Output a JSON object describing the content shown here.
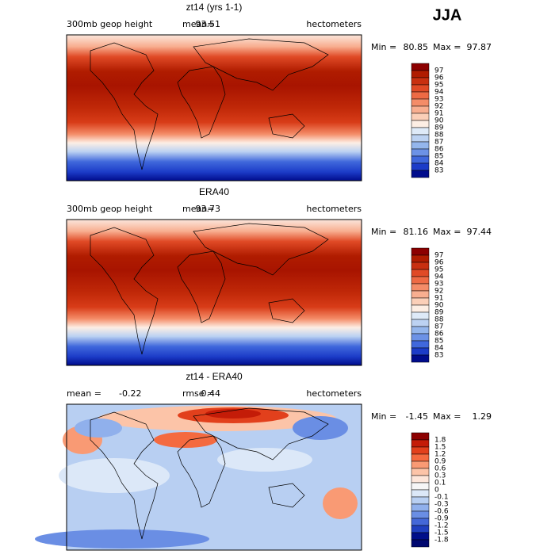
{
  "season": "JJA",
  "panels": [
    {
      "title": "zt14 (yrs 1-1)",
      "left_label": "300mb geop height",
      "stat_label": "mean=",
      "stat": 93.51,
      "units": "hectometers",
      "min_label": "Min =",
      "min": 80.85,
      "max_label": "Max =",
      "max": 97.87,
      "levels": [
        97,
        96,
        95,
        94,
        93,
        92,
        91,
        90,
        89,
        88,
        87,
        86,
        85,
        84,
        83
      ],
      "colors": [
        "#8c0000",
        "#b01c00",
        "#c83010",
        "#e04a26",
        "#ee6a44",
        "#f48c68",
        "#f8ae90",
        "#fbcfb8",
        "#fdeee4",
        "#deeaf8",
        "#bcd2f2",
        "#94b6ec",
        "#6c92e6",
        "#4068dc",
        "#1c3cc8",
        "#000c8c"
      ]
    },
    {
      "title": "ERA40",
      "left_label": "300mb geop height",
      "stat_label": "mean=",
      "stat": 93.73,
      "units": "hectometers",
      "min_label": "Min =",
      "min": 81.16,
      "max_label": "Max =",
      "max": 97.44,
      "levels": [
        97,
        96,
        95,
        94,
        93,
        92,
        91,
        90,
        89,
        88,
        87,
        86,
        85,
        84,
        83
      ],
      "colors": [
        "#8c0000",
        "#b01c00",
        "#c83010",
        "#e04a26",
        "#ee6a44",
        "#f48c68",
        "#f8ae90",
        "#fbcfb8",
        "#fdeee4",
        "#deeaf8",
        "#bcd2f2",
        "#94b6ec",
        "#6c92e6",
        "#4068dc",
        "#1c3cc8",
        "#000c8c"
      ]
    },
    {
      "title": "zt14 - ERA40",
      "left_label": "mean =",
      "left_value": -0.22,
      "stat_label": "rmse =",
      "stat": 0.44,
      "units": "hectometers",
      "min_label": "Min =",
      "min": -1.45,
      "max_label": "Max =",
      "max": 1.29,
      "levels": [
        1.8,
        1.5,
        1.2,
        0.9,
        0.6,
        0.3,
        0.1,
        0,
        -0.1,
        -0.3,
        -0.6,
        -0.9,
        -1.2,
        -1.5,
        -1.8
      ],
      "colors": [
        "#8c0000",
        "#c41c08",
        "#e2401c",
        "#f46a40",
        "#f99a74",
        "#fcc4a8",
        "#fde6da",
        "#f6f6f6",
        "#dce8f8",
        "#b8cff2",
        "#90b0ec",
        "#6a8ee4",
        "#4468d8",
        "#2040c0",
        "#000e8a",
        "#000870"
      ]
    }
  ]
}
